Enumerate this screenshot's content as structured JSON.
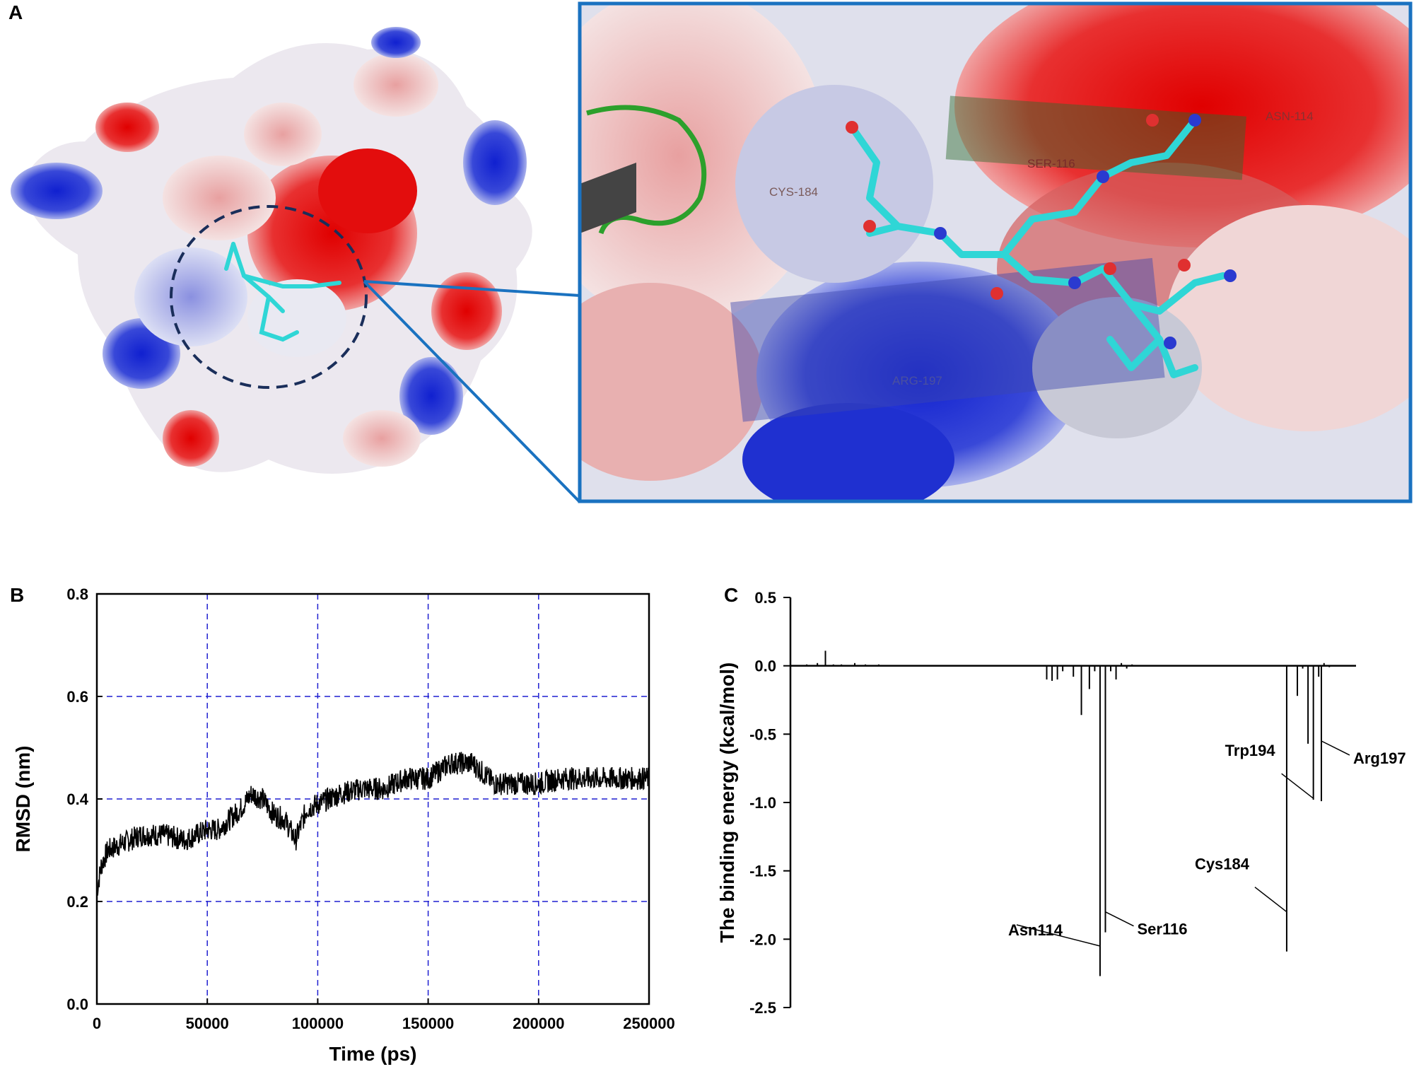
{
  "panels": {
    "a": "A",
    "b": "B",
    "c": "C"
  },
  "structure_labels": {
    "asn114": "ASN-114",
    "ser116": "SER-116",
    "cys184": "CYS-184",
    "arg197": "ARG-197"
  },
  "colors": {
    "surface_negative": "#e31a1c",
    "surface_positive": "#1f35d6",
    "surface_neutral": "#eeeef6",
    "ligand": "#2fd6d6",
    "zoom_frame": "#1a72c0",
    "cartoon": "#2ca02c",
    "grid": "#1f1fd0",
    "trace": "#000000"
  },
  "chart_data": [
    {
      "type": "line",
      "xlabel": "Time (ps)",
      "ylabel": "RMSD (nm)",
      "xlim": [
        0,
        250000
      ],
      "ylim": [
        0.0,
        0.8
      ],
      "xticks": [
        0,
        50000,
        100000,
        150000,
        200000,
        250000
      ],
      "yticks": [
        0.0,
        0.2,
        0.4,
        0.6,
        0.8
      ],
      "grid": true,
      "series": [
        {
          "x": [
            0,
            2000,
            5000,
            10000,
            20000,
            30000,
            40000,
            50000,
            55000,
            60000,
            65000,
            70000,
            75000,
            80000,
            85000,
            90000,
            95000,
            100000,
            110000,
            120000,
            130000,
            140000,
            150000,
            160000,
            170000,
            180000,
            190000,
            200000,
            210000,
            220000,
            230000,
            240000,
            250000
          ],
          "values": [
            0.22,
            0.27,
            0.3,
            0.31,
            0.33,
            0.33,
            0.32,
            0.34,
            0.34,
            0.36,
            0.38,
            0.41,
            0.4,
            0.37,
            0.36,
            0.32,
            0.38,
            0.39,
            0.41,
            0.42,
            0.42,
            0.44,
            0.44,
            0.47,
            0.47,
            0.43,
            0.43,
            0.43,
            0.44,
            0.44,
            0.44,
            0.44,
            0.44
          ]
        }
      ]
    },
    {
      "type": "bar",
      "xlabel": "",
      "ylabel": "The binding energy (kcal/mol)",
      "ylim": [
        -2.5,
        0.5
      ],
      "yticks": [
        0.5,
        0.0,
        -0.5,
        -1.0,
        -1.5,
        -2.0,
        -2.5
      ],
      "x": [
        4,
        8,
        11,
        14,
        17,
        22,
        26,
        31,
        94,
        96,
        98,
        100,
        104,
        107,
        110,
        112,
        114,
        116,
        118,
        120,
        122,
        124,
        126,
        184,
        188,
        190,
        192,
        194,
        196,
        197,
        198,
        200
      ],
      "values": [
        0.01,
        0.02,
        0.11,
        0.01,
        0.01,
        0.02,
        0.01,
        0.01,
        -0.1,
        -0.11,
        -0.1,
        -0.04,
        -0.08,
        -0.36,
        -0.17,
        -0.04,
        -2.27,
        -1.95,
        -0.04,
        -0.1,
        0.02,
        -0.02,
        0.01,
        -2.09,
        -0.22,
        -0.02,
        -0.57,
        -0.98,
        -0.08,
        -0.99,
        0.02,
        -0.01
      ],
      "xlim": [
        0,
        210
      ],
      "annotations": [
        {
          "label": "Asn114",
          "x": 114,
          "y": -2.05
        },
        {
          "label": "Ser116",
          "x": 116,
          "y": -1.8
        },
        {
          "label": "Cys184",
          "x": 184,
          "y": -1.8
        },
        {
          "label": "Trp194",
          "x": 194,
          "y": -0.97
        },
        {
          "label": "Arg197",
          "x": 197,
          "y": -0.55
        }
      ]
    }
  ]
}
